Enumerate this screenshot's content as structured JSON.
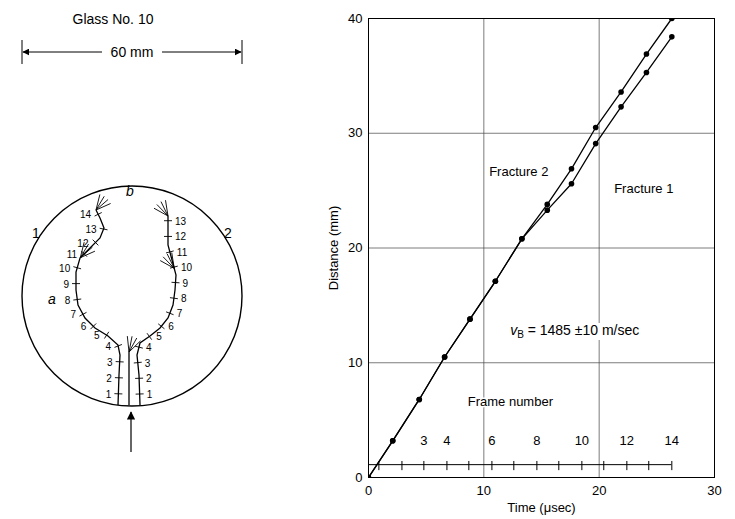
{
  "diagram": {
    "title": "Glass No. 10",
    "dimension": "60 mm",
    "regions": [
      "1",
      "2"
    ],
    "points": [
      "a",
      "b"
    ],
    "fractures": [
      {
        "frames": [
          1,
          2,
          3,
          4,
          5,
          6,
          7,
          8,
          9,
          10,
          11,
          12,
          13,
          14
        ]
      },
      {
        "frames": [
          1,
          2,
          3,
          4,
          5,
          6,
          7,
          8,
          9,
          10,
          11,
          12,
          13
        ]
      }
    ]
  },
  "chart_data": {
    "type": "line",
    "xlabel": "Time (μsec)",
    "ylabel": "Distance (mm)",
    "xlim": [
      0,
      30
    ],
    "xticks": [
      0,
      10,
      20,
      30
    ],
    "ylim": [
      0,
      40
    ],
    "yticks": [
      0,
      10,
      20,
      30,
      40
    ],
    "grid": true,
    "x": [
      0,
      2.1,
      4.4,
      6.6,
      8.8,
      11.0,
      13.3,
      15.5,
      17.6,
      19.7,
      21.9,
      24.1,
      26.3
    ],
    "series": [
      {
        "name": "Fracture 1",
        "color": "#000000",
        "marker": "circle",
        "line_style": "solid",
        "values": [
          0,
          3.2,
          6.8,
          10.5,
          13.8,
          17.1,
          20.8,
          23.3,
          25.6,
          29.1,
          32.3,
          35.3,
          38.4
        ]
      },
      {
        "name": "Fracture 2",
        "color": "#000000",
        "marker": "circle",
        "line_style": "solid",
        "values": [
          0,
          3.2,
          6.8,
          10.5,
          13.8,
          17.1,
          20.8,
          23.8,
          26.9,
          30.5,
          33.6,
          36.9,
          40.0
        ]
      }
    ],
    "annotation": {
      "symbol": "v",
      "subscript": "B",
      "text": " = 1485 ±10 m/sec"
    },
    "frame_axis": {
      "label": "Frame number",
      "times": [
        0.9,
        2.9,
        4.8,
        6.8,
        8.7,
        10.7,
        12.6,
        14.6,
        16.5,
        18.5,
        20.4,
        22.4,
        24.3,
        26.3
      ],
      "labels": [
        null,
        null,
        3,
        4,
        null,
        6,
        null,
        8,
        null,
        10,
        null,
        12,
        null,
        14
      ]
    }
  }
}
